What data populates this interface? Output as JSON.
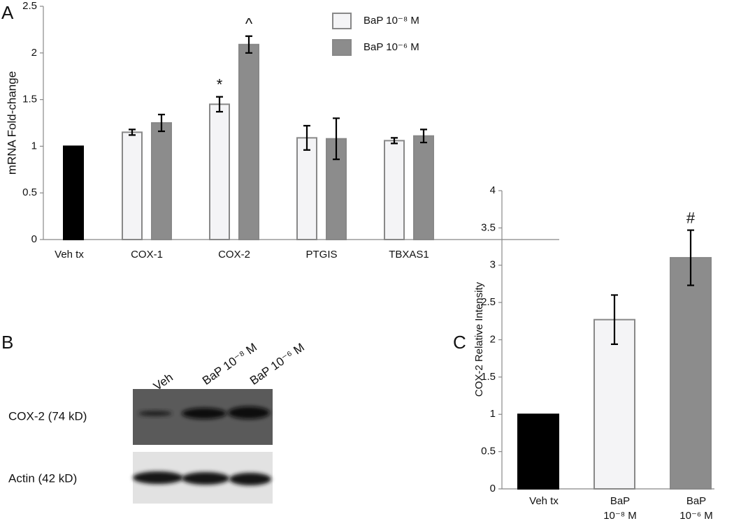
{
  "chart_data": [
    {
      "type": "bar",
      "panel": "A",
      "ylabel": "mRNA Fold-change",
      "categories": [
        "Veh tx",
        "COX-1",
        "COX-2",
        "PTGIS",
        "TBXAS1"
      ],
      "series": [
        {
          "color": "#000000",
          "values": [
            1,
            null,
            null,
            null,
            null
          ],
          "errors": [
            null,
            null,
            null,
            null,
            null
          ],
          "annotations": [
            null,
            null,
            null,
            null,
            null
          ]
        },
        {
          "name": "BaP 10⁻⁸ M",
          "color": "#f4f4f6",
          "values": [
            null,
            1.15,
            1.45,
            1.09,
            1.06
          ],
          "errors": [
            null,
            0.03,
            0.08,
            0.13,
            0.03
          ],
          "annotations": [
            null,
            null,
            "*",
            null,
            null
          ]
        },
        {
          "name": "BaP 10⁻⁶ M",
          "color": "#8c8c8c",
          "values": [
            null,
            1.25,
            2.09,
            1.08,
            1.11
          ],
          "errors": [
            null,
            0.09,
            0.09,
            0.22,
            0.07
          ],
          "annotations": [
            null,
            null,
            "^",
            null,
            null
          ]
        }
      ],
      "ylim": [
        0,
        2.5
      ],
      "yticks": [
        0,
        0.5,
        1,
        1.5,
        2,
        2.5
      ],
      "grid": false,
      "legend": "top-right"
    },
    {
      "type": "bar",
      "panel": "C",
      "ylabel": "COX-2 Relative Intensity",
      "categories": [
        "Veh tx",
        "BaP\n10⁻⁸ M",
        "BaP\n10⁻⁶ M"
      ],
      "values": [
        1,
        2.27,
        3.1
      ],
      "errors": [
        null,
        0.33,
        0.37
      ],
      "annotations": [
        null,
        null,
        "#"
      ],
      "colors": [
        "#000000",
        "#f4f4f6",
        "#8c8c8c"
      ],
      "ylim": [
        0,
        4
      ],
      "yticks": [
        0,
        0.5,
        1,
        1.5,
        2,
        2.5,
        3,
        3.5,
        4
      ],
      "grid": false
    }
  ],
  "blot": {
    "panel": "B",
    "lanes": [
      "Veh",
      "BaP 10⁻⁸ M",
      "BaP 10⁻⁶ M"
    ],
    "rows": [
      "COX-2 (74 kD)",
      "Actin (42 kD)"
    ]
  }
}
